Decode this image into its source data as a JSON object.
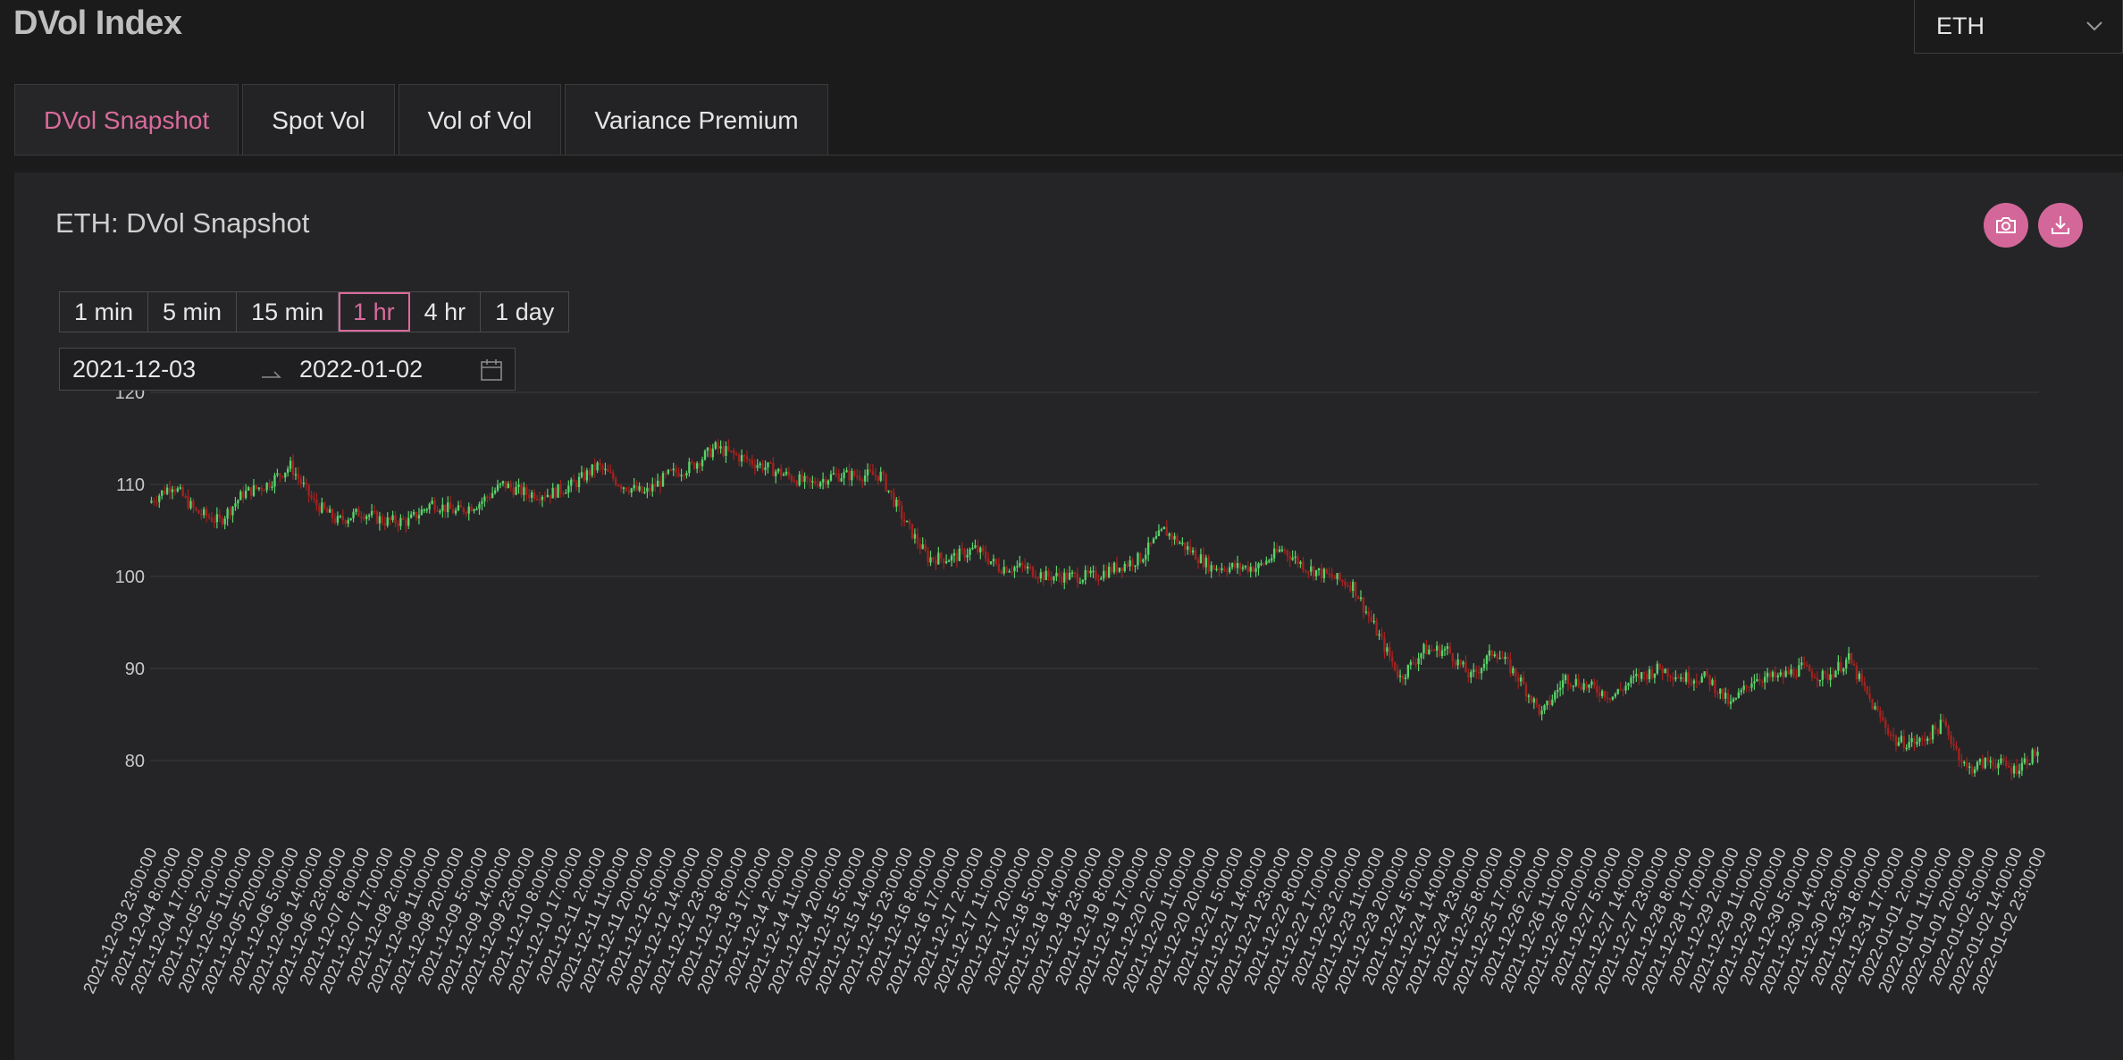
{
  "page": {
    "title": "DVol Index"
  },
  "asset_select": {
    "value": "ETH"
  },
  "tabs": [
    {
      "label": "DVol Snapshot",
      "active": true
    },
    {
      "label": "Spot Vol",
      "active": false
    },
    {
      "label": "Vol of Vol",
      "active": false
    },
    {
      "label": "Variance Premium",
      "active": false
    }
  ],
  "panel": {
    "title": "ETH: DVol Snapshot",
    "actions": [
      {
        "icon": "camera-icon"
      },
      {
        "icon": "download-icon"
      }
    ]
  },
  "intervals": [
    {
      "label": "1 min",
      "active": false
    },
    {
      "label": "5 min",
      "active": false
    },
    {
      "label": "15 min",
      "active": false
    },
    {
      "label": "1 hr",
      "active": true
    },
    {
      "label": "4 hr",
      "active": false
    },
    {
      "label": "1 day",
      "active": false
    }
  ],
  "date_range": {
    "start": "2021-12-03",
    "end": "2022-01-02"
  },
  "colors": {
    "accent": "#d4679a",
    "candle_up": "#59d36a",
    "candle_down": "#a3221f",
    "grid": "#3b3b3e",
    "panel_bg": "#252527",
    "page_bg": "#1b1b1c"
  },
  "chart_data": {
    "type": "candlestick",
    "interval": "1h",
    "title": "",
    "xlabel": "",
    "ylabel": "",
    "ylim": [
      76,
      120
    ],
    "yticks": [
      80,
      90,
      100,
      110,
      120
    ],
    "grid": true,
    "x_tick_labels": [
      "2021-12-03 23:00:00",
      "2021-12-04 8:00:00",
      "2021-12-04 17:00:00",
      "2021-12-05 2:00:00",
      "2021-12-05 11:00:00",
      "2021-12-05 20:00:00",
      "2021-12-06 5:00:00",
      "2021-12-06 14:00:00",
      "2021-12-06 23:00:00",
      "2021-12-07 8:00:00",
      "2021-12-07 17:00:00",
      "2021-12-08 2:00:00",
      "2021-12-08 11:00:00",
      "2021-12-08 20:00:00",
      "2021-12-09 5:00:00",
      "2021-12-09 14:00:00",
      "2021-12-09 23:00:00",
      "2021-12-10 8:00:00",
      "2021-12-10 17:00:00",
      "2021-12-11 2:00:00",
      "2021-12-11 11:00:00",
      "2021-12-11 20:00:00",
      "2021-12-12 5:00:00",
      "2021-12-12 14:00:00",
      "2021-12-12 23:00:00",
      "2021-12-13 8:00:00",
      "2021-12-13 17:00:00",
      "2021-12-14 2:00:00",
      "2021-12-14 11:00:00",
      "2021-12-14 20:00:00",
      "2021-12-15 5:00:00",
      "2021-12-15 14:00:00",
      "2021-12-15 23:00:00",
      "2021-12-16 8:00:00",
      "2021-12-16 17:00:00",
      "2021-12-17 2:00:00",
      "2021-12-17 11:00:00",
      "2021-12-17 20:00:00",
      "2021-12-18 5:00:00",
      "2021-12-18 14:00:00",
      "2021-12-18 23:00:00",
      "2021-12-19 8:00:00",
      "2021-12-19 17:00:00",
      "2021-12-20 2:00:00",
      "2021-12-20 11:00:00",
      "2021-12-20 20:00:00",
      "2021-12-21 5:00:00",
      "2021-12-21 14:00:00",
      "2021-12-21 23:00:00",
      "2021-12-22 8:00:00",
      "2021-12-22 17:00:00",
      "2021-12-23 2:00:00",
      "2021-12-23 11:00:00",
      "2021-12-23 20:00:00",
      "2021-12-24 5:00:00",
      "2021-12-24 14:00:00",
      "2021-12-24 23:00:00",
      "2021-12-25 8:00:00",
      "2021-12-25 17:00:00",
      "2021-12-26 2:00:00",
      "2021-12-26 11:00:00",
      "2021-12-26 20:00:00",
      "2021-12-27 5:00:00",
      "2021-12-27 14:00:00",
      "2021-12-27 23:00:00",
      "2021-12-28 8:00:00",
      "2021-12-28 17:00:00",
      "2021-12-29 2:00:00",
      "2021-12-29 11:00:00",
      "2021-12-29 20:00:00",
      "2021-12-30 5:00:00",
      "2021-12-30 14:00:00",
      "2021-12-30 23:00:00",
      "2021-12-31 8:00:00",
      "2021-12-31 17:00:00",
      "2022-01-01 2:00:00",
      "2022-01-01 11:00:00",
      "2022-01-01 20:00:00",
      "2022-01-02 5:00:00",
      "2022-01-02 14:00:00",
      "2022-01-02 23:00:00"
    ],
    "close_at_ticks": [
      108,
      110,
      107,
      106,
      109,
      110,
      112,
      108,
      106,
      107,
      106,
      106,
      108,
      107,
      108,
      110,
      109,
      109,
      110,
      112,
      110,
      109,
      111,
      112,
      114,
      113,
      112,
      111,
      110,
      111,
      111,
      111,
      106,
      102,
      102,
      103,
      101,
      101,
      100,
      100,
      100,
      101,
      102,
      105,
      103,
      101,
      101,
      101,
      103,
      101,
      100,
      99,
      94,
      89,
      92,
      92,
      89,
      92,
      89,
      85,
      89,
      88,
      87,
      89,
      90,
      89,
      89,
      86,
      89,
      89,
      90,
      89,
      91,
      86,
      82,
      82,
      84,
      79,
      80,
      79,
      81
    ]
  }
}
